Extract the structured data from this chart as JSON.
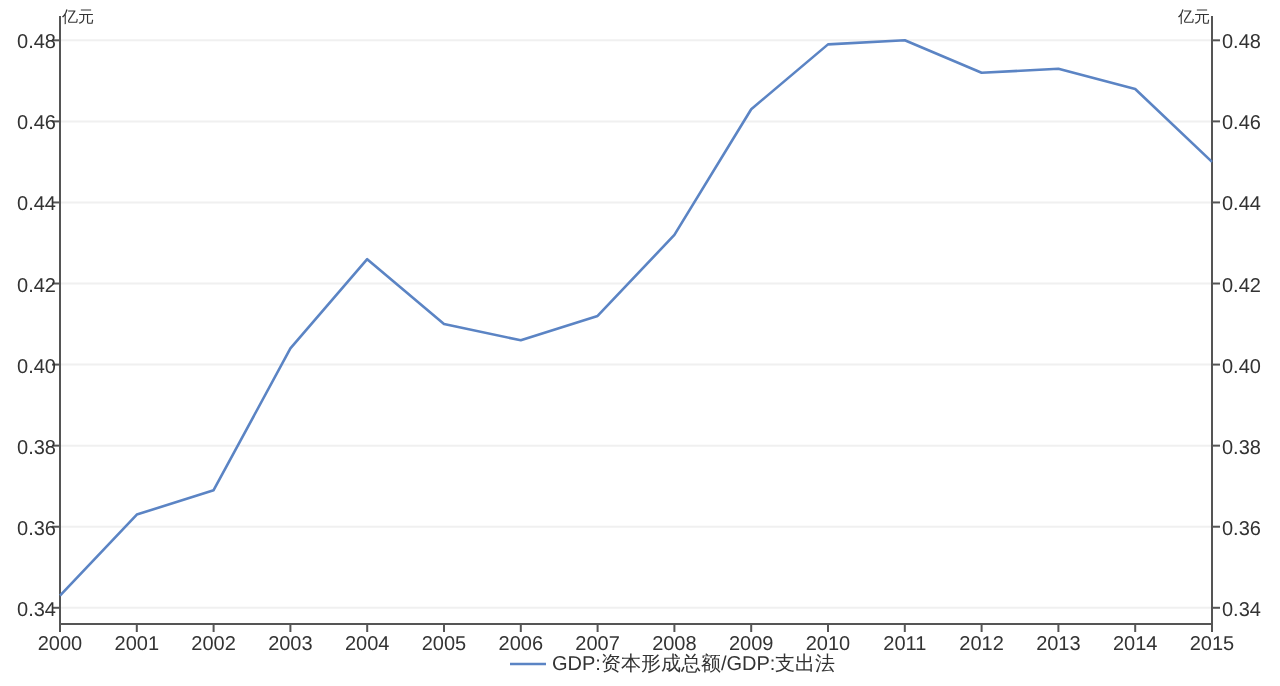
{
  "chart_data": {
    "type": "line",
    "ylabel": "亿元",
    "y2label": "亿元",
    "x": [
      2000,
      2001,
      2002,
      2003,
      2004,
      2005,
      2006,
      2007,
      2008,
      2009,
      2010,
      2011,
      2012,
      2013,
      2014,
      2015
    ],
    "series": [
      {
        "name": "GDP:资本形成总额/GDP:支出法",
        "color": "#5b84c4",
        "values": [
          0.343,
          0.363,
          0.369,
          0.404,
          0.426,
          0.41,
          0.406,
          0.412,
          0.432,
          0.463,
          0.479,
          0.48,
          0.472,
          0.473,
          0.468,
          0.45
        ]
      }
    ],
    "xlim": [
      2000,
      2015
    ],
    "xticks": [
      2000,
      2001,
      2002,
      2003,
      2004,
      2005,
      2006,
      2007,
      2008,
      2009,
      2010,
      2011,
      2012,
      2013,
      2014,
      2015
    ],
    "ylim": [
      0.336,
      0.486
    ],
    "yticks": [
      0.34,
      0.36,
      0.38,
      {
        "value": 0.4,
        "label": "0.40"
      },
      0.42,
      0.44,
      0.46,
      0.48
    ],
    "y2lim": [
      0.336,
      0.486
    ],
    "y2ticks": [
      0.34,
      0.36,
      0.38,
      {
        "value": 0.4,
        "label": "0.40"
      },
      0.42,
      0.44,
      0.46,
      0.48
    ],
    "grid": "y",
    "legend": "bottom",
    "marker": "none",
    "line_style": "solid"
  }
}
